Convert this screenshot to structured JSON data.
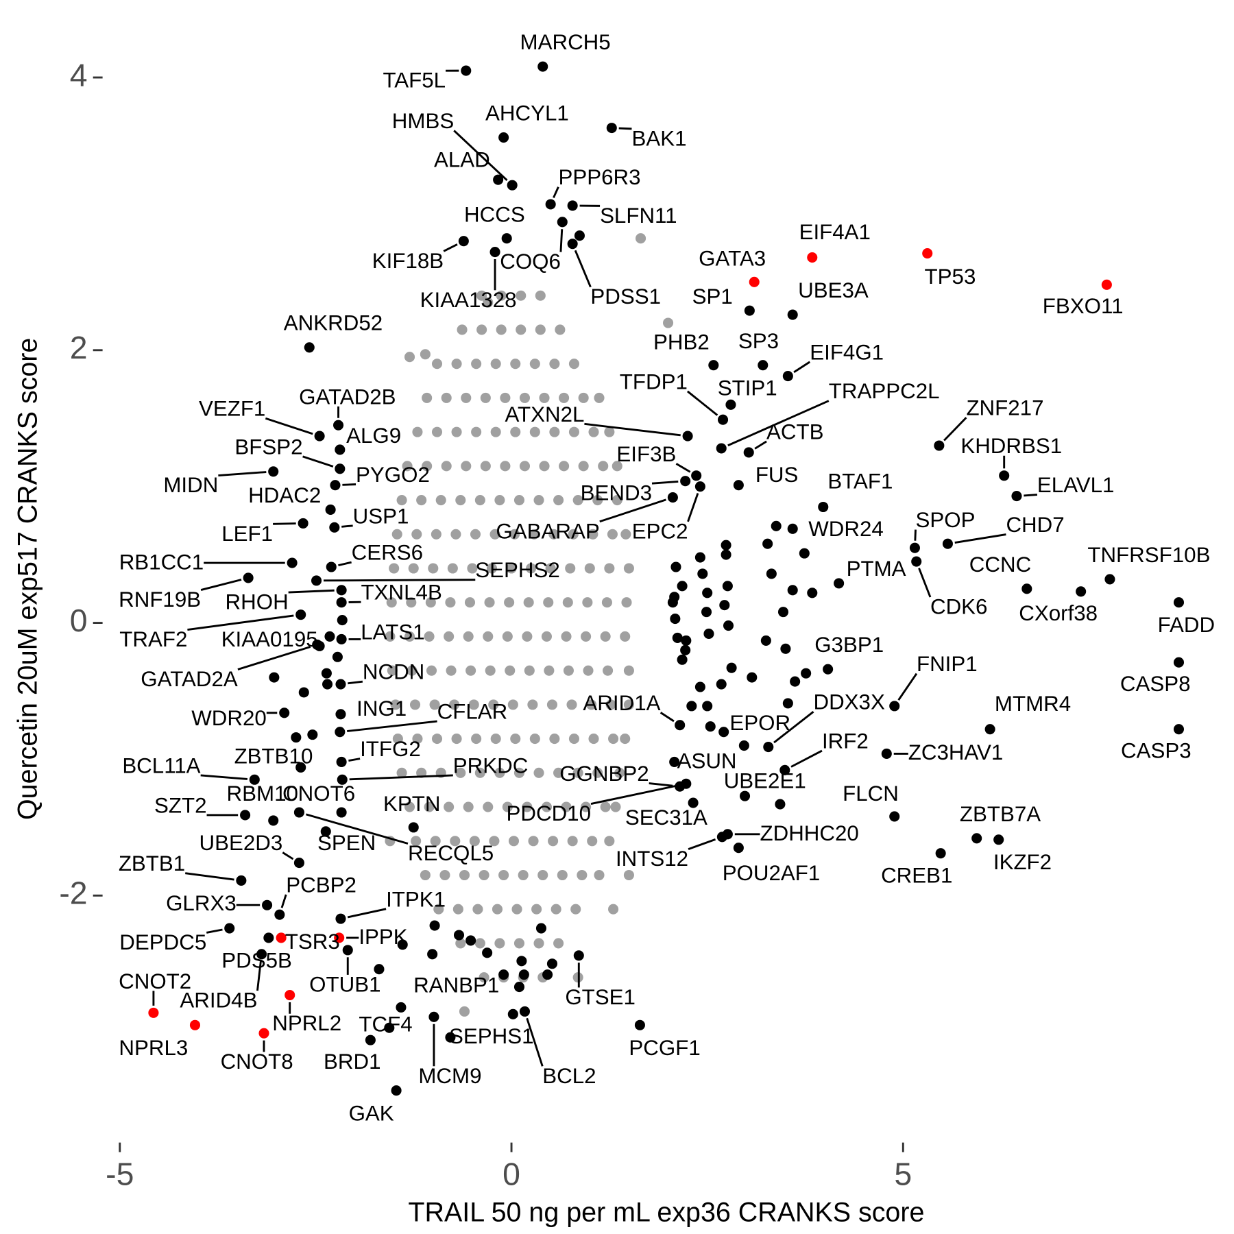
{
  "chart_data": {
    "type": "scatter",
    "x_label": "TRAIL 50 ng per mL exp36 CRANKS score",
    "y_label": "Quercetin 20uM exp517 CRANKS score",
    "xlim": [
      -5.2,
      8.9
    ],
    "ylim": [
      -3.8,
      4.3
    ],
    "xticks": [
      -5,
      0,
      5
    ],
    "yticks": [
      -2,
      0,
      2,
      4
    ],
    "series": [
      {
        "color": "#a0a0a0",
        "x": [
          -0.38,
          -0.13,
          0.12,
          0.37,
          -0.63,
          -0.38,
          -0.13,
          0.12,
          0.37,
          0.62,
          -0.95,
          -0.7,
          -0.45,
          -0.2,
          0.05,
          0.3,
          0.55,
          0.8,
          -1.08,
          -0.83,
          -0.58,
          -0.33,
          -0.08,
          0.17,
          0.42,
          0.67,
          0.92,
          1.12,
          -1.2,
          -0.95,
          -0.7,
          -0.45,
          -0.2,
          0.05,
          0.3,
          0.55,
          0.8,
          1.05,
          1.25,
          -1.33,
          -1.08,
          -0.83,
          -0.58,
          -0.33,
          -0.08,
          0.17,
          0.42,
          0.67,
          0.92,
          1.17,
          1.35,
          -1.4,
          -1.15,
          -0.9,
          -0.65,
          -0.4,
          -0.15,
          0.1,
          0.35,
          0.6,
          0.85,
          1.1,
          1.35,
          -1.46,
          -1.21,
          -0.96,
          -0.71,
          -0.46,
          -0.21,
          0.04,
          0.29,
          0.54,
          0.79,
          1.04,
          1.29,
          1.46,
          -1.5,
          -1.25,
          -1,
          -0.75,
          -0.5,
          -0.25,
          0,
          0.25,
          0.5,
          0.75,
          1,
          1.25,
          1.5,
          -1.53,
          -1.28,
          -1.03,
          -0.78,
          -0.53,
          -0.28,
          -0.03,
          0.22,
          0.47,
          0.72,
          0.97,
          1.22,
          1.47,
          -1.55,
          -1.3,
          -1.05,
          -0.8,
          -0.55,
          -0.3,
          -0.05,
          0.2,
          0.45,
          0.7,
          0.95,
          1.2,
          1.45,
          -1.52,
          -1.27,
          -1.02,
          -0.77,
          -0.52,
          -0.27,
          -0.02,
          0.23,
          0.48,
          0.73,
          0.98,
          1.23,
          1.5,
          -1.48,
          -1.23,
          -0.98,
          -0.73,
          -0.48,
          -0.23,
          0.02,
          0.27,
          0.52,
          0.77,
          1.02,
          1.27,
          1.5,
          -1.45,
          -1.2,
          -0.95,
          -0.7,
          -0.45,
          -0.2,
          0.05,
          0.3,
          0.55,
          0.8,
          1.05,
          1.3,
          1.45,
          -1.4,
          -1.15,
          -0.9,
          -0.65,
          -0.4,
          -0.15,
          0.1,
          0.35,
          0.6,
          0.85,
          1.1,
          1.38,
          -1.3,
          -1.05,
          -0.8,
          -0.55,
          -0.3,
          -0.05,
          0.2,
          0.45,
          0.7,
          0.95,
          1.2,
          1.33,
          -1.22,
          -0.97,
          -0.72,
          -0.47,
          -0.22,
          0.03,
          0.28,
          0.53,
          0.78,
          1.03,
          1.25,
          -1.1,
          -0.85,
          -0.6,
          -0.35,
          -0.1,
          0.15,
          0.4,
          0.65,
          0.9,
          1.12,
          -0.93,
          -0.68,
          -0.43,
          -0.18,
          0.07,
          0.32,
          0.57,
          0.82,
          -0.65,
          -0.4,
          -0.15,
          0.1,
          0.35,
          0.6,
          -0.35,
          -0.1,
          0.15,
          0.4,
          1.65,
          -0.3,
          2.0,
          -1.1,
          1.5,
          -1.55,
          0.85,
          -0.6,
          1.3,
          -1.3
        ],
        "y": [
          2.4,
          2.4,
          2.4,
          2.4,
          2.15,
          2.15,
          2.15,
          2.15,
          2.15,
          2.15,
          1.9,
          1.9,
          1.9,
          1.9,
          1.9,
          1.9,
          1.9,
          1.9,
          1.65,
          1.65,
          1.65,
          1.65,
          1.65,
          1.65,
          1.65,
          1.65,
          1.65,
          1.65,
          1.4,
          1.4,
          1.4,
          1.4,
          1.4,
          1.4,
          1.4,
          1.4,
          1.4,
          1.4,
          1.4,
          1.15,
          1.15,
          1.15,
          1.15,
          1.15,
          1.15,
          1.15,
          1.15,
          1.15,
          1.15,
          1.15,
          1.15,
          0.9,
          0.9,
          0.9,
          0.9,
          0.9,
          0.9,
          0.9,
          0.9,
          0.9,
          0.9,
          0.9,
          0.9,
          0.65,
          0.65,
          0.65,
          0.65,
          0.65,
          0.65,
          0.65,
          0.65,
          0.65,
          0.65,
          0.65,
          0.65,
          0.65,
          0.4,
          0.4,
          0.4,
          0.4,
          0.4,
          0.4,
          0.4,
          0.4,
          0.4,
          0.4,
          0.4,
          0.4,
          0.4,
          0.15,
          0.15,
          0.15,
          0.15,
          0.15,
          0.15,
          0.15,
          0.15,
          0.15,
          0.15,
          0.15,
          0.15,
          0.15,
          -0.1,
          -0.1,
          -0.1,
          -0.1,
          -0.1,
          -0.1,
          -0.1,
          -0.1,
          -0.1,
          -0.1,
          -0.1,
          -0.1,
          -0.1,
          -0.35,
          -0.35,
          -0.35,
          -0.35,
          -0.35,
          -0.35,
          -0.35,
          -0.35,
          -0.35,
          -0.35,
          -0.35,
          -0.35,
          -0.35,
          -0.6,
          -0.6,
          -0.6,
          -0.6,
          -0.6,
          -0.6,
          -0.6,
          -0.6,
          -0.6,
          -0.6,
          -0.6,
          -0.6,
          -0.6,
          -0.85,
          -0.85,
          -0.85,
          -0.85,
          -0.85,
          -0.85,
          -0.85,
          -0.85,
          -0.85,
          -0.85,
          -0.85,
          -0.85,
          -0.85,
          -1.1,
          -1.1,
          -1.1,
          -1.1,
          -1.1,
          -1.1,
          -1.1,
          -1.1,
          -1.1,
          -1.1,
          -1.1,
          -1.1,
          -1.35,
          -1.35,
          -1.35,
          -1.35,
          -1.35,
          -1.35,
          -1.35,
          -1.35,
          -1.35,
          -1.35,
          -1.35,
          -1.35,
          -1.6,
          -1.6,
          -1.6,
          -1.6,
          -1.6,
          -1.6,
          -1.6,
          -1.6,
          -1.6,
          -1.6,
          -1.6,
          -1.85,
          -1.85,
          -1.85,
          -1.85,
          -1.85,
          -1.85,
          -1.85,
          -1.85,
          -1.85,
          -1.85,
          -2.1,
          -2.1,
          -2.1,
          -2.1,
          -2.1,
          -2.1,
          -2.1,
          -2.1,
          -2.35,
          -2.35,
          -2.35,
          -2.35,
          -2.35,
          -2.35,
          -2.6,
          -2.6,
          -2.6,
          -2.6,
          2.82,
          2.35,
          2.2,
          1.97,
          -1.85,
          -1.6,
          -2.6,
          -2.85,
          -2.1,
          1.95
        ]
      },
      {
        "color": "#000000",
        "x": [
          2.1,
          2.41,
          2.18,
          2.44,
          2.08,
          2.74,
          2.74,
          2.5,
          2.76,
          2.09,
          2.49,
          2.72,
          2.23,
          2.52,
          2.77,
          2.12,
          2.22,
          2.41,
          2.68,
          2.81,
          2.3,
          2.5,
          2.54,
          2.71,
          3.07,
          3.25,
          3.5,
          3.47,
          3.32,
          3.59,
          3.84,
          3.74,
          3.38,
          3.27,
          3.62,
          3.76,
          3.53,
          2.06,
          2.18,
          0.87,
          2.98,
          -2.16,
          -2.22,
          -2.36,
          -2.35,
          -2.45,
          -2.65,
          -2.75,
          -2.54,
          -3.03,
          -0.98,
          -0.67,
          -0.52,
          -0.31,
          -1.01,
          0.16,
          0.38,
          0.46,
          0.52,
          0.13,
          0.1,
          -1.41,
          -1.39,
          -1.69,
          -0.78
        ],
        "y": [
          0.41,
          0.48,
          0.27,
          0.36,
          0.19,
          0.57,
          0.5,
          0.22,
          0.27,
          0.03,
          0.08,
          0.13,
          -0.13,
          -0.08,
          -0.02,
          -0.11,
          -0.2,
          -0.47,
          -0.45,
          -0.33,
          -0.61,
          -0.61,
          -0.76,
          -0.8,
          -0.4,
          -0.13,
          -0.19,
          0.08,
          0.36,
          0.24,
          0.22,
          0.51,
          0.71,
          0.58,
          -0.43,
          -0.37,
          -0.59,
          0.15,
          -0.27,
          2.84,
          -1.27,
          0.02,
          -0.25,
          -0.37,
          -0.45,
          -0.17,
          -0.51,
          -0.84,
          -0.82,
          -0.4,
          -2.22,
          -2.29,
          -2.33,
          -2.42,
          -2.43,
          -2.58,
          -2.24,
          -2.58,
          -2.5,
          -2.48,
          -2.67,
          -2.82,
          -2.36,
          -2.54,
          -3.04
        ]
      },
      {
        "color": "#000000",
        "labels": [
          "MARCH5",
          "TAF5L",
          "AHCYL1",
          "HMBS",
          "ALAD",
          "BAK1",
          "PPP6R3",
          "SLFN11",
          "COQ6",
          "PDSS1",
          "HCCS",
          "KIF18B",
          "KIAA1328",
          "ANKRD52",
          "SP1",
          "UBE3A",
          "PHB2",
          "SP3",
          "EIF4G1",
          "TFDP1",
          "STIP1",
          "TRAPPC2L",
          "ACTB",
          "ATXN2L",
          "EIF3B",
          "BEND3",
          "GABARAP",
          "EPC2",
          "FUS",
          "WDR24",
          "BTAF1",
          "ZNF217",
          "KHDRBS1",
          "ELAVL1",
          "SPOP",
          "CHD7",
          "CDK6",
          "PTMA",
          "CCNC",
          "TNFRSF10B",
          "CXorf38",
          "FADD",
          "CASP8",
          "CASP3",
          "MTMR4",
          "FNIP1",
          "G3BP1",
          "DDX3X",
          "EPOR",
          "IRF2",
          "ZC3HAV1",
          "UBE2E1",
          "ZDHHC20",
          "POU2AF1",
          "INTS12",
          "ASUN",
          "GGNBP2",
          "PDCD10",
          "SEC31A",
          "ARID1A",
          "FLCN",
          "ZBTB7A",
          "IKZF2",
          "CREB1",
          "GTSE1",
          "PCGF1",
          "BCL2",
          "SEPHS1",
          "MCM9",
          "GAK",
          "BRD1",
          "TCF4",
          "RANBP1",
          "OTUB1",
          "PDS5B",
          "ARID4B",
          "DEPDC5",
          "GLRX3",
          "PCBP2",
          "ITPK1",
          "ZBTB1",
          "UBE2D3",
          "SPEN",
          "RECQL5",
          "SZT2",
          "RBM10",
          "CNOT6",
          "KPTN",
          "BCL11A",
          "ZBTB10",
          "PRKDC",
          "ITFG2",
          "CFLAR",
          "ING1",
          "WDR20",
          "NCDN",
          "GATAD2A",
          "KIAA0195",
          "LATS1",
          "TRAF2",
          "TXNL4B",
          "RNF19B",
          "RHOH",
          "SEPHS2",
          "CERS6",
          "RB1CC1",
          "LEF1",
          "USP1",
          "HDAC2",
          "PYGO2",
          "MIDN",
          "BFSP2",
          "ALG9",
          "GATAD2B",
          "VEZF1"
        ],
        "x": [
          0.4,
          -0.58,
          -0.1,
          0.01,
          -0.17,
          1.28,
          0.5,
          0.78,
          0.65,
          0.78,
          -0.06,
          -0.61,
          -0.21,
          -2.58,
          3.04,
          3.59,
          2.58,
          3.21,
          3.53,
          2.7,
          2.8,
          2.68,
          3.03,
          2.25,
          2.36,
          2.22,
          2.06,
          2.41,
          2.9,
          3.59,
          3.98,
          5.46,
          6.29,
          6.45,
          5.15,
          5.57,
          5.17,
          4.18,
          6.58,
          7.64,
          7.27,
          8.52,
          8.52,
          8.52,
          6.11,
          4.89,
          4.04,
          3.28,
          2.97,
          3.49,
          4.79,
          3.43,
          2.76,
          2.9,
          2.69,
          2.08,
          2.15,
          2.23,
          2.32,
          2.15,
          4.89,
          5.94,
          6.22,
          5.48,
          0.86,
          1.64,
          0.17,
          0.02,
          -0.99,
          -1.47,
          -1.8,
          -1.56,
          -0.1,
          -2.09,
          -3.1,
          -3.19,
          -3.6,
          -3.12,
          -2.96,
          -2.18,
          -3.45,
          -2.71,
          -2.37,
          -2.71,
          -3.4,
          -3.04,
          -2.17,
          -1.25,
          -3.28,
          -2.69,
          -2.16,
          -2.17,
          -2.19,
          -2.18,
          -2.9,
          -2.18,
          -2.48,
          -2.32,
          -2.17,
          -2.69,
          -2.17,
          -3.36,
          -2.17,
          -2.49,
          -2.3,
          -2.8,
          -2.66,
          -2.26,
          -2.31,
          -2.25,
          -3.04,
          -2.19,
          -2.19,
          -2.21,
          -2.45
        ],
        "y": [
          4.08,
          4.05,
          3.56,
          3.21,
          3.25,
          3.63,
          3.07,
          3.06,
          2.94,
          2.78,
          2.82,
          2.8,
          2.72,
          2.02,
          2.29,
          2.26,
          1.89,
          1.89,
          1.81,
          1.49,
          1.6,
          1.28,
          1.25,
          1.37,
          1.08,
          1.04,
          0.92,
          1.0,
          1.01,
          0.69,
          0.85,
          1.3,
          1.08,
          0.93,
          0.55,
          0.58,
          0.45,
          0.29,
          0.25,
          0.32,
          0.23,
          0.15,
          -0.29,
          -0.78,
          -0.78,
          -0.61,
          -0.34,
          -0.91,
          -0.9,
          -1.08,
          -0.96,
          -1.33,
          -1.55,
          -1.65,
          -1.57,
          -1.02,
          -1.2,
          -1.18,
          -1.32,
          -0.75,
          -1.42,
          -1.58,
          -1.59,
          -1.69,
          -2.44,
          -2.95,
          -2.85,
          -2.87,
          -2.89,
          -3.43,
          -3.06,
          -2.97,
          -2.58,
          -2.4,
          -2.31,
          -2.43,
          -2.24,
          -2.07,
          -2.14,
          -2.17,
          -1.89,
          -1.76,
          -1.53,
          -1.39,
          -1.41,
          -1.45,
          -1.39,
          -1.5,
          -1.15,
          -1.06,
          -1.15,
          -1.02,
          -0.8,
          -0.67,
          -0.66,
          -0.45,
          -0.16,
          -0.1,
          -0.12,
          0.06,
          0.15,
          0.33,
          0.24,
          0.31,
          0.41,
          0.44,
          0.73,
          0.7,
          0.83,
          1.01,
          1.11,
          1.13,
          1.27,
          1.45,
          1.37
        ]
      },
      {
        "color": "#ff0000",
        "labels": [
          "GATA3",
          "EIF4A1",
          "TP53",
          "FBXO11",
          "CNOT2",
          "NPRL3",
          "CNOT8",
          "NPRL2",
          "TSR3",
          "IPPK"
        ],
        "x": [
          3.1,
          3.84,
          5.31,
          7.6,
          -4.57,
          -4.04,
          -3.16,
          -2.83,
          -2.94,
          -2.2
        ],
        "y": [
          2.5,
          2.68,
          2.71,
          2.48,
          -2.86,
          -2.95,
          -3.01,
          -2.73,
          -2.31,
          -2.31
        ]
      }
    ]
  }
}
